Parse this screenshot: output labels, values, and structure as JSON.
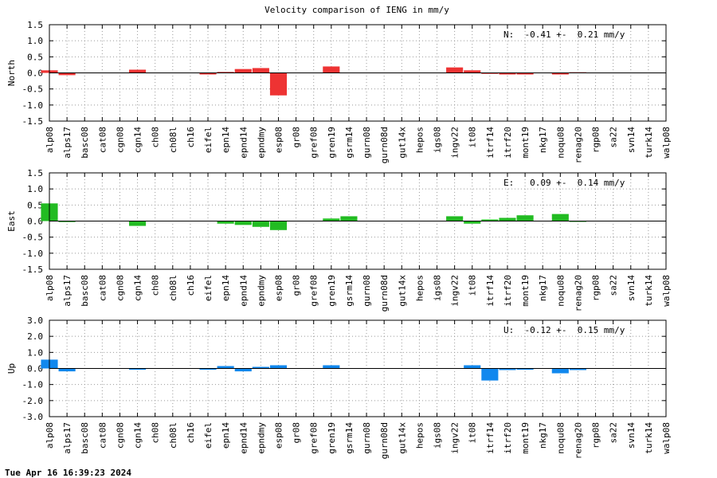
{
  "footer": "Tue Apr 16 16:39:23 2024",
  "colors": {
    "North": "#ee3333",
    "East": "#22bb22",
    "Up": "#1188ee"
  },
  "chart_data": [
    {
      "type": "bar",
      "title": "Velocity comparison of IENG in mm/y",
      "ylabel": "North",
      "ylim": [
        -1.5,
        1.5
      ],
      "yticks": [
        "1.5",
        "1.0",
        "0.5",
        "0.0",
        "-0.5",
        "-1.0",
        "-1.5"
      ],
      "grid": true,
      "annotation": "N:  -0.41 +-  0.21 mm/y",
      "categories": [
        "alp08",
        "alps17",
        "basc08",
        "cat08",
        "cgn08",
        "cgn14",
        "ch08",
        "ch08l",
        "ch16",
        "eifel",
        "epn14",
        "epnd14",
        "epndmy",
        "esp08",
        "gr08",
        "gref08",
        "gren19",
        "gsrm14",
        "gurn08",
        "gurn08d",
        "gut14x",
        "hepos",
        "igs08",
        "ingv22",
        "it08",
        "itrf14",
        "itrf20",
        "mont19",
        "nkg17",
        "noqu08",
        "renag20",
        "rgp08",
        "sa22",
        "svn14",
        "turk14",
        "walp08"
      ],
      "values": [
        0.08,
        -0.07,
        0,
        0,
        0,
        0.1,
        0,
        0,
        0,
        -0.05,
        0.03,
        0.12,
        0.15,
        -0.7,
        0,
        0,
        0.2,
        0,
        0,
        0,
        0,
        0,
        0,
        0.17,
        0.08,
        -0.03,
        -0.05,
        -0.05,
        0,
        -0.05,
        0.02,
        0,
        0,
        0,
        0,
        0
      ]
    },
    {
      "type": "bar",
      "title": "",
      "ylabel": "East",
      "ylim": [
        -1.5,
        1.5
      ],
      "yticks": [
        "1.5",
        "1.0",
        "0.5",
        "0.0",
        "-0.5",
        "-1.0",
        "-1.5"
      ],
      "grid": true,
      "annotation": "E:   0.09 +-  0.14 mm/y",
      "categories": [
        "alp08",
        "alps17",
        "basc08",
        "cat08",
        "cgn08",
        "cgn14",
        "ch08",
        "ch08l",
        "ch16",
        "eifel",
        "epn14",
        "epnd14",
        "epndmy",
        "esp08",
        "gr08",
        "gref08",
        "gren19",
        "gsrm14",
        "gurn08",
        "gurn08d",
        "gut14x",
        "hepos",
        "igs08",
        "ingv22",
        "it08",
        "itrf14",
        "itrf20",
        "mont19",
        "nkg17",
        "noqu08",
        "renag20",
        "rgp08",
        "sa22",
        "svn14",
        "turk14",
        "walp08"
      ],
      "values": [
        0.55,
        -0.03,
        0,
        0,
        0,
        -0.15,
        0,
        0,
        0,
        0,
        -0.08,
        -0.12,
        -0.18,
        -0.28,
        0,
        0,
        0.08,
        0.15,
        0,
        0,
        0,
        0,
        0,
        0.15,
        -0.08,
        0.05,
        0.1,
        0.18,
        0,
        0.22,
        -0.02,
        0,
        0,
        0,
        0,
        0
      ]
    },
    {
      "type": "bar",
      "title": "",
      "ylabel": "Up",
      "ylim": [
        -3.0,
        3.0
      ],
      "yticks": [
        "3.0",
        "2.0",
        "1.0",
        "0.0",
        "-1.0",
        "-2.0",
        "-3.0"
      ],
      "grid": true,
      "annotation": "U:  -0.12 +-  0.15 mm/y",
      "categories": [
        "alp08",
        "alps17",
        "basc08",
        "cat08",
        "cgn08",
        "cgn14",
        "ch08",
        "ch08l",
        "ch16",
        "eifel",
        "epn14",
        "epnd14",
        "epndmy",
        "esp08",
        "gr08",
        "gref08",
        "gren19",
        "gsrm14",
        "gurn08",
        "gurn08d",
        "gut14x",
        "hepos",
        "igs08",
        "ingv22",
        "it08",
        "itrf14",
        "itrf20",
        "mont19",
        "nkg17",
        "noqu08",
        "renag20",
        "rgp08",
        "sa22",
        "svn14",
        "turk14",
        "walp08"
      ],
      "values": [
        0.55,
        -0.18,
        0,
        0,
        0,
        -0.08,
        0,
        0,
        0,
        -0.08,
        0.15,
        -0.18,
        0.1,
        0.2,
        0,
        0,
        0.2,
        0,
        0,
        0,
        0,
        0,
        0,
        0,
        0.2,
        -0.75,
        -0.1,
        -0.08,
        0,
        -0.3,
        -0.1,
        0,
        0,
        0,
        0,
        0
      ]
    }
  ]
}
